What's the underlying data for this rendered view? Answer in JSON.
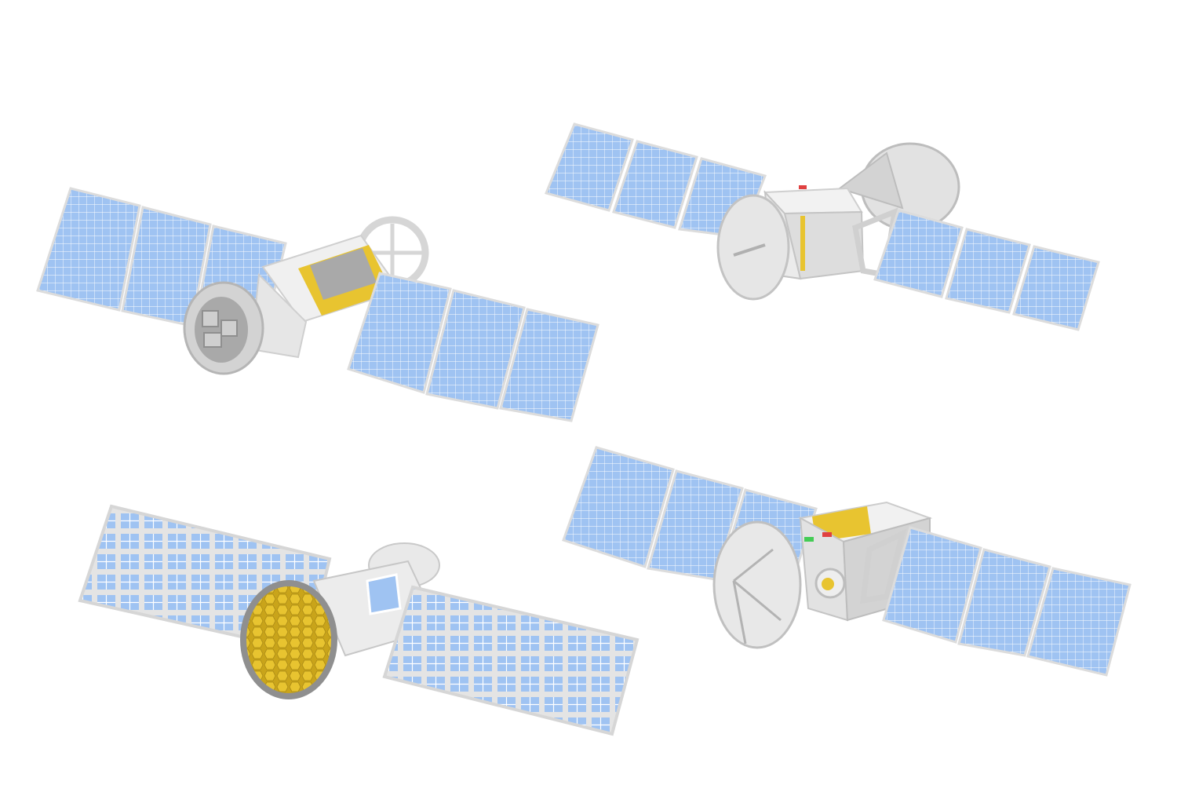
{
  "scene": {
    "background": "#ffffff",
    "satellites": [
      {
        "kind": "cylindrical-bus-with-nozzle",
        "panel_wings": 2,
        "panels_per_wing": 3
      },
      {
        "kind": "box-bus-with-dish-antenna",
        "panel_wings": 2,
        "panels_per_wing": 3
      },
      {
        "kind": "telescope-with-hexagonal-mirror",
        "panel_wings": 2,
        "panels_per_wing": 1
      },
      {
        "kind": "box-bus-with-dish-and-indicator-lights",
        "panel_wings": 2,
        "panels_per_wing": 3
      }
    ]
  },
  "colors": {
    "solar_cell": "#9fc3f2",
    "solar_grid": "#ffffff",
    "panel_frame": "#e4e4e4",
    "body_light": "#f1f1f1",
    "body_mid": "#d3d3d3",
    "body_dark": "#a9a9a9",
    "accent_gold": "#e8c430",
    "indicator_red": "#e04040",
    "indicator_green": "#44cc55"
  }
}
